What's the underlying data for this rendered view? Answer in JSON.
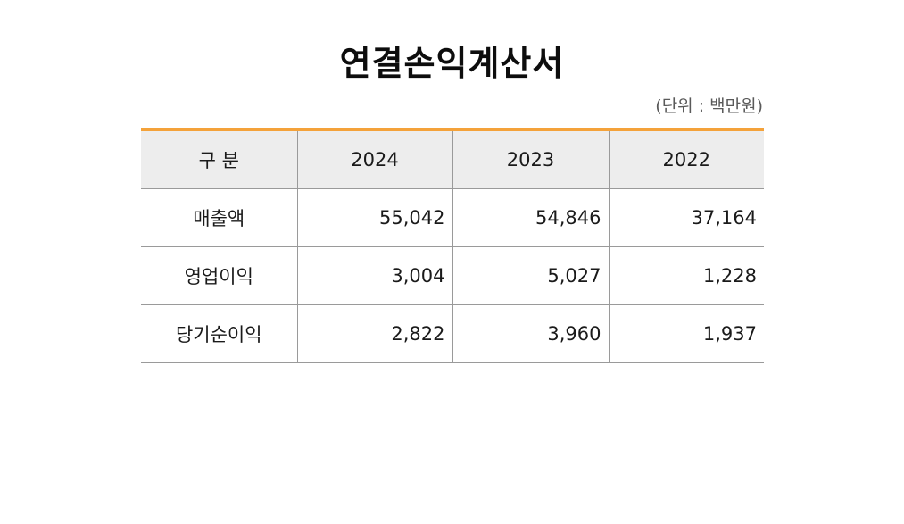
{
  "title": "연결손익계산서",
  "unit": "(단위 : 백만원)",
  "table": {
    "headers": [
      "구 분",
      "2024",
      "2023",
      "2022"
    ],
    "rows": [
      {
        "label": "매출액",
        "values": [
          "55,042",
          "54,846",
          "37,164"
        ]
      },
      {
        "label": "영업이익",
        "values": [
          "3,004",
          "5,027",
          "1,228"
        ]
      },
      {
        "label": "당기순이익",
        "values": [
          "2,822",
          "3,960",
          "1,937"
        ]
      }
    ]
  },
  "colors": {
    "accent_top_border": "#f4a23a",
    "header_background": "#ededed",
    "grid_line": "#9a9a9a"
  }
}
